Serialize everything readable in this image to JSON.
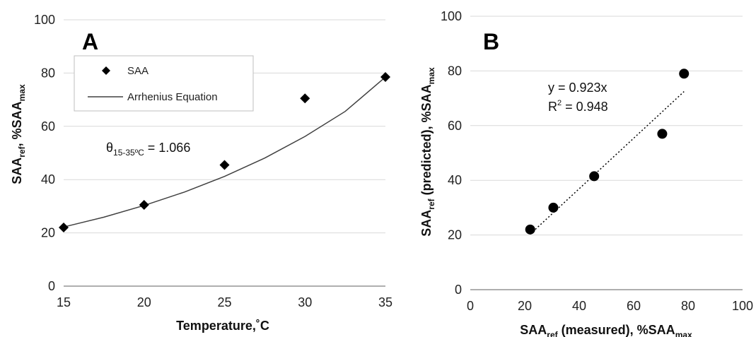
{
  "chart_data": [
    {
      "panel": "A",
      "type": "scatter",
      "xlabel": "Temperature,˚C",
      "ylabel_main": "SAA",
      "ylabel_sub": "ref",
      "ylabel_rest": ", %SAA",
      "ylabel_sub2": "max",
      "xlim": [
        15,
        35
      ],
      "ylim": [
        0,
        100
      ],
      "xticks": [
        "15",
        "20",
        "25",
        "30",
        "35"
      ],
      "yticks": [
        "0",
        "20",
        "40",
        "60",
        "80",
        "100"
      ],
      "grid": true,
      "legend_position": "top-left",
      "series": [
        {
          "name": "SAA",
          "marker": "diamond",
          "x": [
            15,
            20,
            25,
            30,
            35
          ],
          "y": [
            22,
            30.5,
            45.5,
            70.5,
            78.5
          ]
        },
        {
          "name": "Arrhenius Equation",
          "style": "line",
          "x": [
            15,
            17.5,
            20,
            22.5,
            25,
            27.5,
            30,
            32.5,
            35
          ],
          "y": [
            22.2,
            25.9,
            30.3,
            35.3,
            41.2,
            48.1,
            56.2,
            65.6,
            78.5
          ]
        }
      ],
      "annotation": {
        "theta": "θ",
        "sub": "15-35ºC",
        "value": " = 1.066"
      }
    },
    {
      "panel": "B",
      "type": "scatter",
      "xlabel_main": "SAA",
      "xlabel_sub": "ref",
      "xlabel_rest": " (measured), %SAA",
      "xlabel_sub2": "max",
      "ylabel_main": "SAA",
      "ylabel_sub": "ref",
      "ylabel_rest": " (predicted), %SAA",
      "ylabel_sub2": "max",
      "xlim": [
        0,
        100
      ],
      "ylim": [
        0,
        100
      ],
      "xticks": [
        "0",
        "20",
        "40",
        "60",
        "80",
        "100"
      ],
      "yticks": [
        "0",
        "20",
        "40",
        "60",
        "80",
        "100"
      ],
      "grid": true,
      "series": [
        {
          "marker": "circle",
          "x": [
            22,
            30.5,
            45.5,
            70.5,
            78.5
          ],
          "y": [
            22,
            30,
            41.5,
            57,
            79
          ]
        }
      ],
      "trendline": {
        "slope": 0.923,
        "x_range": [
          22,
          78.5
        ]
      },
      "equation": "y = 0.923x",
      "r2_label": "R",
      "r2_sup": "2",
      "r2_value": " = 0.948"
    }
  ]
}
